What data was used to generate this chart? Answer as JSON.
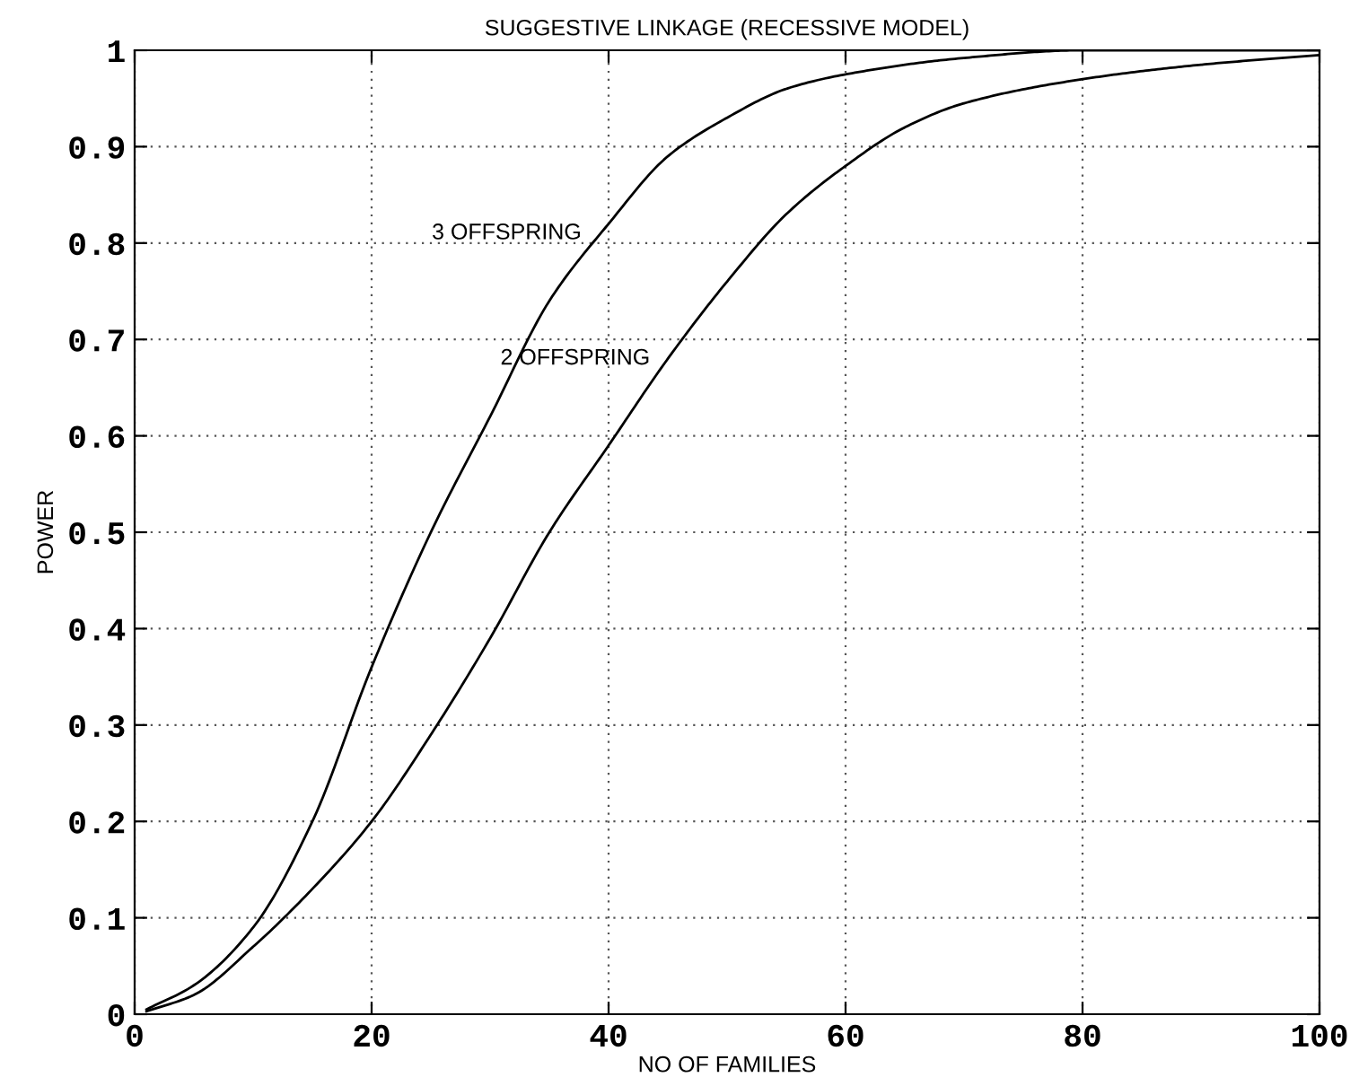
{
  "chart_data": {
    "type": "line",
    "title": "SUGGESTIVE LINKAGE (RECESSIVE MODEL)",
    "xlabel": "NO OF FAMILIES",
    "ylabel": "POWER",
    "series": [
      {
        "name": "3 OFFSPRING",
        "color": "#000000",
        "x": [
          1,
          5,
          10,
          15,
          20,
          25,
          30,
          35,
          40,
          45,
          50,
          55,
          60,
          70,
          80,
          90,
          100
        ],
        "values": [
          0.005,
          0.03,
          0.09,
          0.2,
          0.36,
          0.5,
          0.62,
          0.74,
          0.82,
          0.89,
          0.93,
          0.96,
          0.975,
          0.992,
          1.0,
          1.0,
          1.0
        ]
      },
      {
        "name": "2 OFFSPRING",
        "color": "#000000",
        "x": [
          1,
          5,
          10,
          15,
          20,
          25,
          30,
          35,
          40,
          45,
          50,
          55,
          60,
          65,
          70,
          80,
          90,
          100
        ],
        "values": [
          0.003,
          0.02,
          0.07,
          0.13,
          0.2,
          0.29,
          0.39,
          0.5,
          0.59,
          0.68,
          0.76,
          0.83,
          0.88,
          0.92,
          0.945,
          0.97,
          0.985,
          0.995
        ]
      }
    ],
    "xlim": [
      0,
      100
    ],
    "xticks": [
      0,
      20,
      40,
      60,
      80,
      100
    ],
    "ylim": [
      0,
      1
    ],
    "yticks": [
      0,
      0.1,
      0.2,
      0.3,
      0.4,
      0.5,
      0.6,
      0.7,
      0.8,
      0.9,
      1
    ],
    "grid": true,
    "line_style": "solid",
    "legend": false
  }
}
